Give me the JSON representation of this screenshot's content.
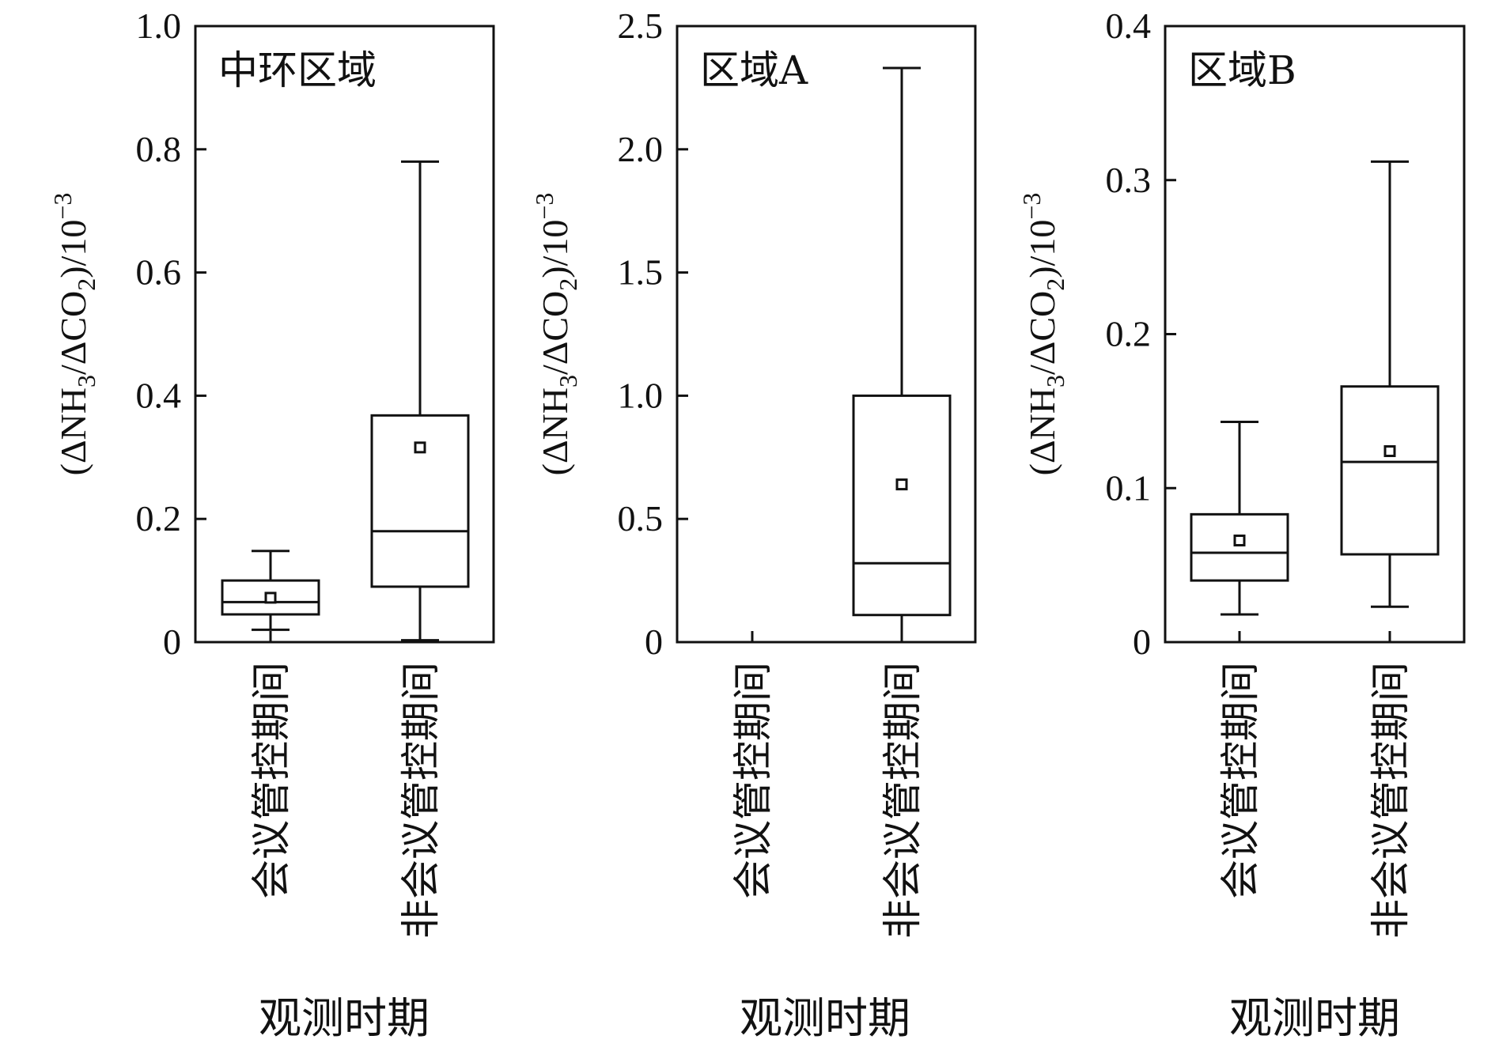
{
  "chart_data": [
    {
      "type": "box",
      "title": "中环区域",
      "xlabel": "观测时期",
      "ylabel": {
        "prefix": "(ΔNH",
        "sub1": "3",
        "mid": "/ΔCO",
        "sub2": "2",
        "suffix": ")/10",
        "sup": "−3"
      },
      "ylim": [
        0,
        1.0
      ],
      "yticks": [
        0,
        0.2,
        0.4,
        0.6,
        0.8,
        1.0
      ],
      "ytick_labels": [
        "0",
        "0.2",
        "0.4",
        "0.6",
        "0.8",
        "1.0"
      ],
      "categories": [
        "会议管控期间",
        "非会议管控期间"
      ],
      "boxes": [
        {
          "whisker_low": 0.02,
          "q1": 0.045,
          "median": 0.065,
          "q3": 0.1,
          "whisker_high": 0.148,
          "mean": 0.072
        },
        {
          "whisker_low": 0.003,
          "q1": 0.09,
          "median": 0.18,
          "q3": 0.368,
          "whisker_high": 0.78,
          "mean": 0.316
        }
      ]
    },
    {
      "type": "box",
      "title": "区域A",
      "xlabel": "观测时期",
      "ylabel": {
        "prefix": "(ΔNH",
        "sub1": "3",
        "mid": "/ΔCO",
        "sub2": "2",
        "suffix": ")/10",
        "sup": "−3"
      },
      "ylim": [
        0,
        2.5
      ],
      "yticks": [
        0,
        0.5,
        1.0,
        1.5,
        2.0,
        2.5
      ],
      "ytick_labels": [
        "0",
        "0.5",
        "1.0",
        "1.5",
        "2.0",
        "2.5"
      ],
      "categories": [
        "会议管控期间",
        "非会议管控期间"
      ],
      "boxes": [
        null,
        {
          "whisker_low": 0.0,
          "q1": 0.11,
          "median": 0.32,
          "q3": 1.0,
          "whisker_high": 2.33,
          "mean": 0.64
        }
      ]
    },
    {
      "type": "box",
      "title": "区域B",
      "xlabel": "观测时期",
      "ylabel": {
        "prefix": "(ΔNH",
        "sub1": "3",
        "mid": "/ΔCO",
        "sub2": "2",
        "suffix": ")/10",
        "sup": "−3"
      },
      "ylim": [
        0,
        0.4
      ],
      "yticks": [
        0,
        0.1,
        0.2,
        0.3,
        0.4
      ],
      "ytick_labels": [
        "0",
        "0.1",
        "0.2",
        "0.3",
        "0.4"
      ],
      "categories": [
        "会议管控期间",
        "非会议管控期间"
      ],
      "boxes": [
        {
          "whisker_low": 0.018,
          "q1": 0.04,
          "median": 0.058,
          "q3": 0.083,
          "whisker_high": 0.143,
          "mean": 0.066
        },
        {
          "whisker_low": 0.023,
          "q1": 0.057,
          "median": 0.117,
          "q3": 0.166,
          "whisker_high": 0.312,
          "mean": 0.124
        }
      ]
    }
  ]
}
